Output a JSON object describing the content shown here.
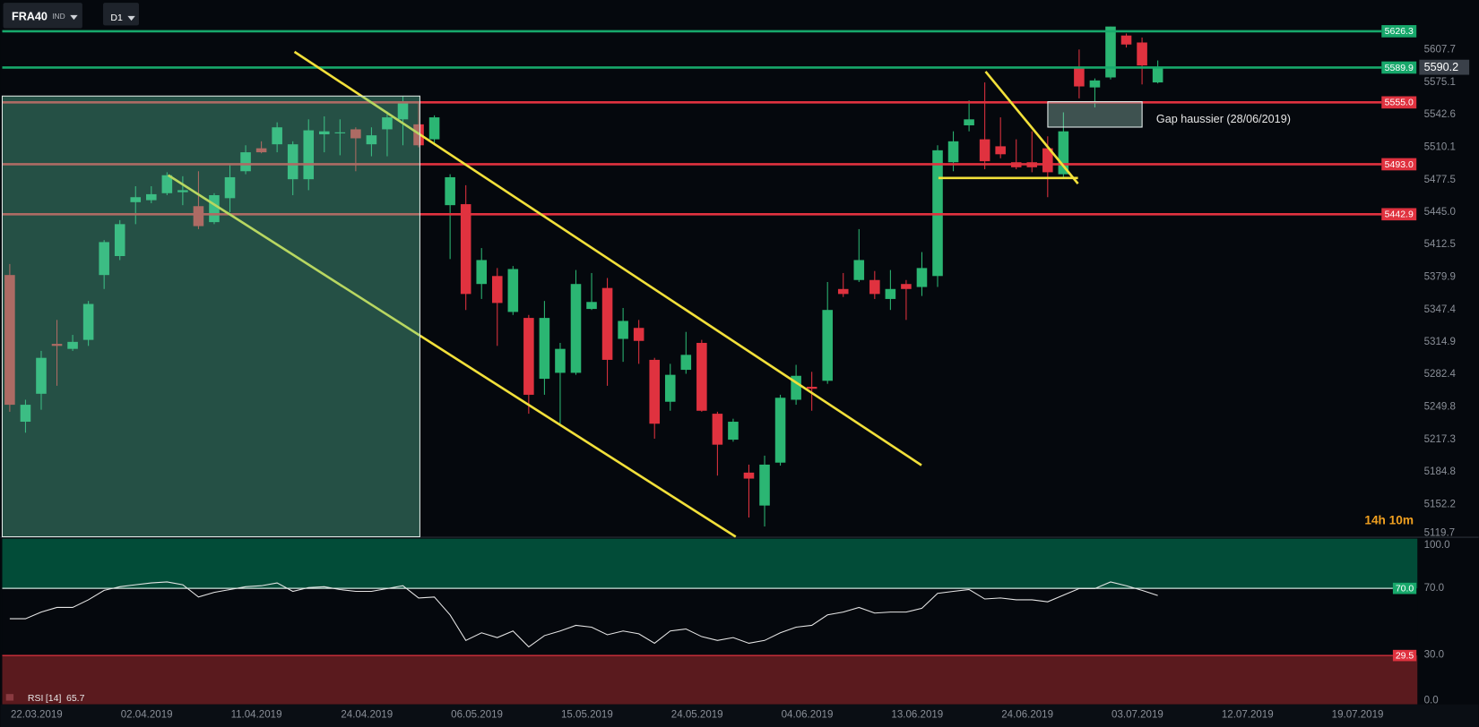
{
  "chart_data": {
    "type": "candlestick",
    "symbol": "FRA40",
    "symbol_type": "IND",
    "timeframe": "D1",
    "countdown": "14h 10m",
    "annotation": "Gap haussier (28/06/2019)",
    "up_color": "#2bb673",
    "down_color": "#e0323f",
    "categories": [
      "22.03.2019",
      null,
      null,
      null,
      null,
      null,
      null,
      "02.04.2019",
      null,
      null,
      null,
      null,
      null,
      null,
      "11.04.2019",
      null,
      null,
      null,
      null,
      null,
      null,
      "24.04.2019",
      null,
      null,
      null,
      null,
      null,
      null,
      "06.05.2019",
      null,
      null,
      null,
      null,
      null,
      null,
      "15.05.2019",
      null,
      null,
      null,
      null,
      null,
      null,
      "24.05.2019",
      null,
      null,
      null,
      null,
      null,
      null,
      "04.06.2019",
      null,
      null,
      null,
      null,
      null,
      null,
      "13.06.2019",
      null,
      null,
      null,
      null,
      null,
      null,
      "24.06.2019",
      null,
      null,
      null,
      null,
      null,
      null,
      "03.07.2019",
      null,
      null,
      null,
      null,
      null,
      null,
      "12.07.2019",
      null,
      null,
      null,
      null,
      null,
      null,
      "19.07.2019",
      null,
      null,
      null,
      null,
      null
    ],
    "open": [
      5382,
      5235,
      5263,
      5313,
      5308,
      5317,
      5382,
      5401,
      5455,
      5457,
      5464,
      5465,
      5451,
      5435,
      5459,
      5486,
      5509,
      5513,
      5478,
      5478,
      5523,
      5524,
      5528,
      5513,
      5528,
      5538,
      5533,
      5518,
      5452,
      5453,
      5373,
      5381,
      5345,
      5339,
      5278,
      5284,
      5284,
      5348,
      5369,
      5318,
      5329,
      5297,
      5255,
      5287,
      5314,
      5243,
      5217,
      5184,
      5151,
      5194,
      5257,
      5270,
      5276,
      5368,
      5377,
      5377,
      5358,
      5373,
      5370,
      5381,
      5495,
      5532,
      5518,
      5511,
      5495,
      5495,
      5509,
      5483,
      5590,
      5570,
      5580,
      5622,
      5615,
      5575,
      null,
      null,
      null,
      null,
      null,
      null,
      null,
      null,
      null,
      null,
      null,
      null,
      null,
      null,
      null,
      null
    ],
    "high": [
      5393,
      5257,
      5306,
      5337,
      5322,
      5356,
      5417,
      5437,
      5471,
      5471,
      5485,
      5481,
      5486,
      5464,
      5492,
      5512,
      5516,
      5535,
      5516,
      5538,
      5541,
      5538,
      5530,
      5530,
      5546,
      5561,
      5554,
      5542,
      5483,
      5472,
      5409,
      5389,
      5391,
      5342,
      5356,
      5314,
      5387,
      5384,
      5379,
      5349,
      5337,
      5299,
      5293,
      5325,
      5317,
      5245,
      5238,
      5192,
      5201,
      5262,
      5292,
      5285,
      5375,
      5384,
      5428,
      5386,
      5387,
      5377,
      5405,
      5512,
      5526,
      5557,
      5575,
      5540,
      5518,
      5526,
      5521,
      5545,
      5608,
      5579,
      5631,
      5624,
      5620,
      5597,
      null,
      null,
      null,
      null,
      null,
      null,
      null,
      null,
      null,
      null,
      null,
      null,
      null,
      null,
      null,
      null
    ],
    "low": [
      5245,
      5224,
      5247,
      5271,
      5306,
      5311,
      5368,
      5397,
      5433,
      5454,
      5462,
      5452,
      5428,
      5433,
      5445,
      5483,
      5504,
      5505,
      5462,
      5467,
      5505,
      5502,
      5486,
      5501,
      5501,
      5512,
      5510,
      5512,
      5398,
      5347,
      5358,
      5311,
      5342,
      5243,
      5262,
      5233,
      5282,
      5347,
      5271,
      5295,
      5293,
      5218,
      5246,
      5283,
      5245,
      5181,
      5215,
      5139,
      5130,
      5191,
      5252,
      5246,
      5273,
      5360,
      5375,
      5358,
      5347,
      5337,
      5361,
      5370,
      5486,
      5526,
      5488,
      5499,
      5488,
      5485,
      5460,
      5479,
      5559,
      5550,
      5578,
      5610,
      5573,
      5574,
      null,
      null,
      null,
      null,
      null,
      null,
      null,
      null,
      null,
      null,
      null,
      null,
      null,
      null,
      null,
      null
    ],
    "close": [
      5252,
      5252,
      5299,
      5311,
      5315,
      5353,
      5415,
      5433,
      5460,
      5463,
      5482,
      5467,
      5431,
      5462,
      5480,
      5505,
      5505,
      5530,
      5513,
      5527,
      5526,
      5525,
      5519,
      5522,
      5540,
      5554,
      5512,
      5540,
      5480,
      5363,
      5397,
      5354,
      5388,
      5262,
      5339,
      5308,
      5373,
      5355,
      5297,
      5336,
      5316,
      5233,
      5282,
      5302,
      5246,
      5212,
      5235,
      5178,
      5192,
      5259,
      5281,
      5268,
      5347,
      5363,
      5397,
      5363,
      5368,
      5368,
      5389,
      5507,
      5516,
      5538,
      5496,
      5503,
      5490,
      5490,
      5485,
      5526,
      5571,
      5577,
      5631,
      5613,
      5592,
      5590.2,
      null,
      null,
      null,
      null,
      null,
      null,
      null,
      null,
      null,
      null,
      null,
      null,
      null,
      null,
      null,
      null
    ],
    "ylim": [
      5119.7,
      5657.6
    ],
    "yticks": [
      5607.7,
      5575.1,
      5542.6,
      5510.1,
      5477.5,
      {
        "value": 5445,
        "label": "5445.0"
      },
      5412.5,
      5379.9,
      5347.4,
      5314.9,
      5282.4,
      5249.8,
      5217.3,
      5184.8,
      5152.2,
      5119.7
    ],
    "levels": [
      {
        "value": 5626.3,
        "color": "#17a86b"
      },
      {
        "value": 5589.9,
        "color": "#17a86b"
      },
      {
        "value": 5555,
        "label": "5555.0",
        "color": "#e0323f"
      },
      {
        "value": 5493,
        "label": "5493.0",
        "color": "#e0323f"
      },
      {
        "value": 5442.9,
        "color": "#e0323f"
      }
    ],
    "rsi": {
      "name": "RSI",
      "params": "[14]",
      "color": "#e6e6e6",
      "values": [
        51.7,
        51.7,
        55.7,
        58.5,
        58.5,
        63.1,
        68.8,
        71,
        72.2,
        73.3,
        73.9,
        72.2,
        64.8,
        67.6,
        69.3,
        71,
        71.6,
        73.3,
        68.2,
        70.5,
        71,
        69.3,
        68.2,
        68.2,
        69.9,
        71.6,
        64.2,
        64.8,
        54,
        38.6,
        43.2,
        40.3,
        44.3,
        34.7,
        41.5,
        44.3,
        47.7,
        46.6,
        42,
        44.3,
        42.6,
        36.9,
        44.3,
        45.5,
        40.9,
        38.6,
        40.3,
        36.9,
        38.6,
        43.2,
        46.6,
        47.7,
        54,
        55.7,
        58.5,
        55.1,
        55.7,
        55.7,
        58,
        67,
        68.2,
        69.3,
        63.6,
        64.2,
        63.1,
        63.1,
        61.9,
        65.9,
        69.9,
        69.9,
        73.9,
        71.6,
        68.8,
        65.7,
        null,
        null,
        null,
        null,
        null,
        null,
        null,
        null,
        null,
        null,
        null,
        null,
        null,
        null,
        null,
        null
      ],
      "ylim": [
        0,
        100
      ],
      "yticks": [
        {
          "value": 100,
          "label": "100.0"
        },
        {
          "value": 70,
          "label": "70.0"
        },
        {
          "value": 30,
          "label": "30.0"
        },
        {
          "value": 0,
          "label": "0.0"
        }
      ],
      "overbought": {
        "value": 70,
        "label": "70.0"
      },
      "oversold": 29.5
    }
  }
}
